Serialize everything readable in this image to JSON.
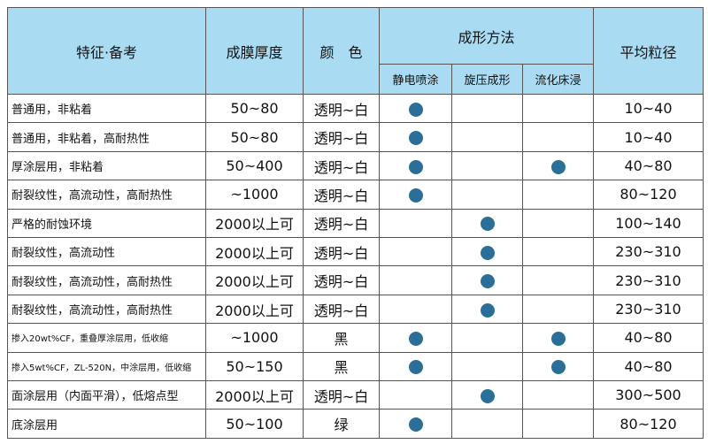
{
  "table": {
    "header": {
      "feature": "特征·备考",
      "thickness": "成膜厚度",
      "color": "颜　色",
      "method": "成形方法",
      "methods": [
        "静电喷涂",
        "旋压成形",
        "流化床浸"
      ],
      "size": "平均粒径"
    },
    "rows": [
      {
        "feature": "普通用，非粘着",
        "thickness": "50~80",
        "color": "透明~白",
        "methods": [
          true,
          false,
          false
        ],
        "size": "10~40"
      },
      {
        "feature": "普通用，非粘着，高耐热性",
        "thickness": "50~80",
        "color": "透明~白",
        "methods": [
          true,
          false,
          false
        ],
        "size": "10~40"
      },
      {
        "feature": "厚涂层用，非粘着",
        "thickness": "50~400",
        "color": "透明~白",
        "methods": [
          true,
          false,
          true
        ],
        "size": "40~80"
      },
      {
        "feature": "耐裂纹性，高流动性，高耐热性",
        "thickness": "~1000",
        "color": "透明~白",
        "methods": [
          true,
          false,
          false
        ],
        "size": "80~120"
      },
      {
        "feature": "严格的耐蚀环境",
        "thickness": "2000以上可",
        "color": "透明~白",
        "methods": [
          false,
          true,
          false
        ],
        "size": "100~140"
      },
      {
        "feature": "耐裂纹性，高流动性",
        "thickness": "2000以上可",
        "color": "透明~白",
        "methods": [
          false,
          true,
          false
        ],
        "size": "230~310"
      },
      {
        "feature": "耐裂纹性，高流动性，高耐热性",
        "thickness": "2000以上可",
        "color": "透明~白",
        "methods": [
          false,
          true,
          false
        ],
        "size": "230~310"
      },
      {
        "feature": "耐裂纹性，高流动性，高耐热性",
        "thickness": "2000以上可",
        "color": "透明~白",
        "methods": [
          false,
          true,
          false
        ],
        "size": "230~310"
      },
      {
        "feature": "掺入20wt%CF，重叠厚涂层用，低收缩",
        "thickness": "~1000",
        "color": "黑",
        "methods": [
          true,
          false,
          true
        ],
        "size": "40~80"
      },
      {
        "feature": "掺入5wt%CF，ZL-520N，中涂层用，低收缩",
        "thickness": "50~150",
        "color": "黑",
        "methods": [
          true,
          false,
          true
        ],
        "size": "40~80"
      },
      {
        "feature": "面涂层用（内面平滑），低熔点型",
        "thickness": "2000以上可",
        "color": "透明~白",
        "methods": [
          false,
          true,
          false
        ],
        "size": "300~500"
      },
      {
        "feature": "底涂层用",
        "thickness": "50~100",
        "color": "绿",
        "methods": [
          true,
          false,
          false
        ],
        "size": "80~120"
      }
    ]
  }
}
